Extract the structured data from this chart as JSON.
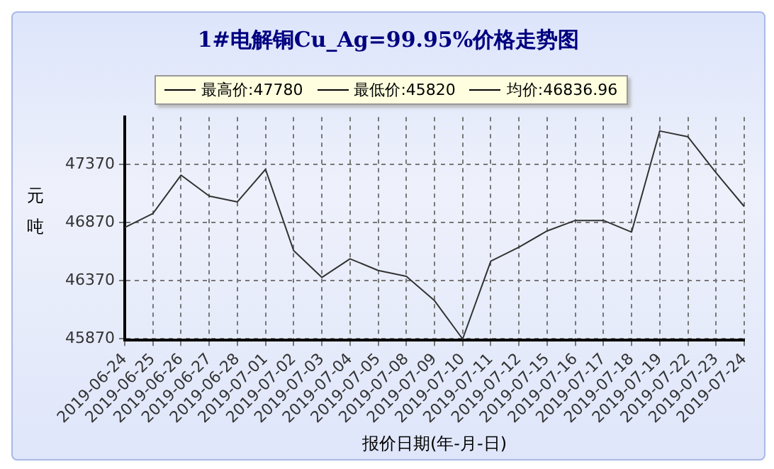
{
  "chart_data": {
    "type": "line",
    "title": "1#电解铜Cu_Ag=99.95%价格走势图",
    "annotations": [
      "最高价:47780",
      "最低价:45820",
      "均价:46836.96"
    ],
    "categories": [
      "2019-06-24",
      "2019-06-25",
      "2019-06-26",
      "2019-06-27",
      "2019-06-28",
      "2019-07-01",
      "2019-07-02",
      "2019-07-03",
      "2019-07-04",
      "2019-07-05",
      "2019-07-08",
      "2019-07-09",
      "2019-07-10",
      "2019-07-11",
      "2019-07-12",
      "2019-07-15",
      "2019-07-16",
      "2019-07-17",
      "2019-07-18",
      "2019-07-19",
      "2019-07-22",
      "2019-07-23",
      "2019-07-24"
    ],
    "series": [
      {
        "color": "#333333",
        "values": [
          46830,
          46950,
          47280,
          47100,
          47050,
          47330,
          46630,
          46400,
          46560,
          46460,
          46410,
          46200,
          45870,
          46540,
          46660,
          46800,
          46890,
          46890,
          46790,
          47660,
          47610,
          47300,
          47010
        ]
      }
    ],
    "xlabel": "报价日期(年-月-日)",
    "ylabel": "元吨",
    "ylim": [
      45860,
      47780
    ],
    "yticks": [
      45870,
      46370,
      46870,
      47370
    ],
    "grid": true,
    "marker": "none",
    "line_style": "solid"
  }
}
